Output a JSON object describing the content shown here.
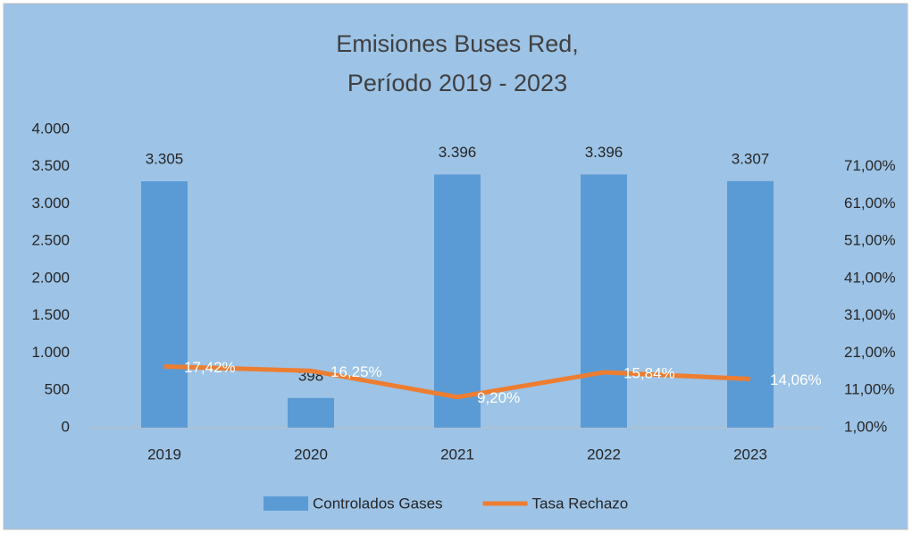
{
  "chart_data": {
    "type": "bar_line",
    "title": [
      "Emisiones Buses Red,",
      "Período 2019 - 2023"
    ],
    "categories": [
      "2019",
      "2020",
      "2021",
      "2022",
      "2023"
    ],
    "series": [
      {
        "name": "Controlados Gases",
        "type": "bar",
        "color": "#5b9bd5",
        "values": [
          3305,
          398,
          3396,
          3396,
          3307
        ],
        "value_labels": [
          "3.305",
          "398",
          "3.396",
          "3.396",
          "3.307"
        ]
      },
      {
        "name": "Tasa Rechazo",
        "type": "line",
        "axis": "y2",
        "color": "#ed7d31",
        "values": [
          17.42,
          16.25,
          9.2,
          15.84,
          14.06
        ],
        "value_labels": [
          "17,42%",
          "16,25%",
          "9,20%",
          "15,84%",
          "14,06%"
        ]
      }
    ],
    "ylim": [
      0,
      4000
    ],
    "yticks": [
      0,
      500,
      {
        "value": 1000,
        "label": "1.000"
      },
      {
        "value": 1500,
        "label": "1.500"
      },
      {
        "value": 2000,
        "label": "2.000"
      },
      {
        "value": 2500,
        "label": "2.500"
      },
      {
        "value": 3000,
        "label": "3.000"
      },
      {
        "value": 3500,
        "label": "3.500"
      },
      {
        "value": 4000,
        "label": "4.000"
      }
    ],
    "y2lim": [
      1,
      81
    ],
    "y2ticks": [
      {
        "value": 1,
        "label": "1,00%"
      },
      {
        "value": 11,
        "label": "11,00%"
      },
      {
        "value": 21,
        "label": "21,00%"
      },
      {
        "value": 31,
        "label": "31,00%"
      },
      {
        "value": 41,
        "label": "41,00%"
      },
      {
        "value": 51,
        "label": "51,00%"
      },
      {
        "value": 61,
        "label": "61,00%"
      },
      {
        "value": 71,
        "label": "71,00%"
      }
    ],
    "grid": false,
    "legend": "bottom"
  }
}
